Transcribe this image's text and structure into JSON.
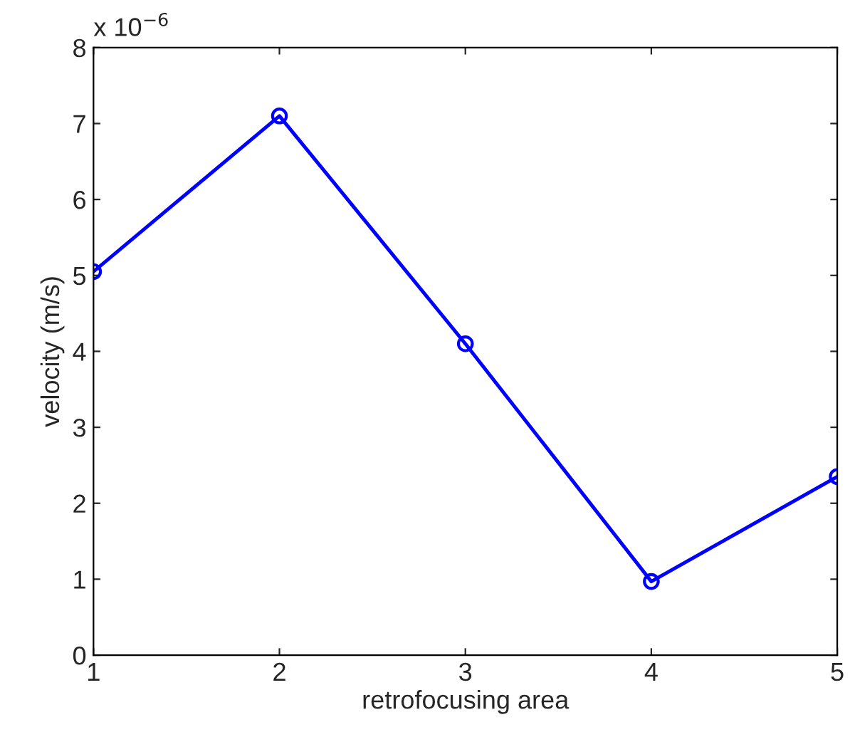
{
  "chart_data": {
    "type": "line",
    "xlabel": "retrofocusing area",
    "ylabel": "velocity (m/s)",
    "x": [
      1,
      2,
      3,
      4,
      5
    ],
    "series": [
      {
        "color": "#0000ff",
        "values": [
          5.05,
          7.1,
          4.1,
          0.97,
          2.35
        ]
      }
    ],
    "xlim": [
      1,
      5
    ],
    "xticks": [
      1,
      2,
      3,
      4,
      5
    ],
    "ylim": [
      0,
      8
    ],
    "yticks": [
      0,
      1,
      2,
      3,
      4,
      5,
      6,
      7,
      8
    ],
    "marker": "circle",
    "line_style": "solid",
    "grid": false,
    "legend": false,
    "annotations": [
      "x 10$^{−6}$"
    ]
  }
}
